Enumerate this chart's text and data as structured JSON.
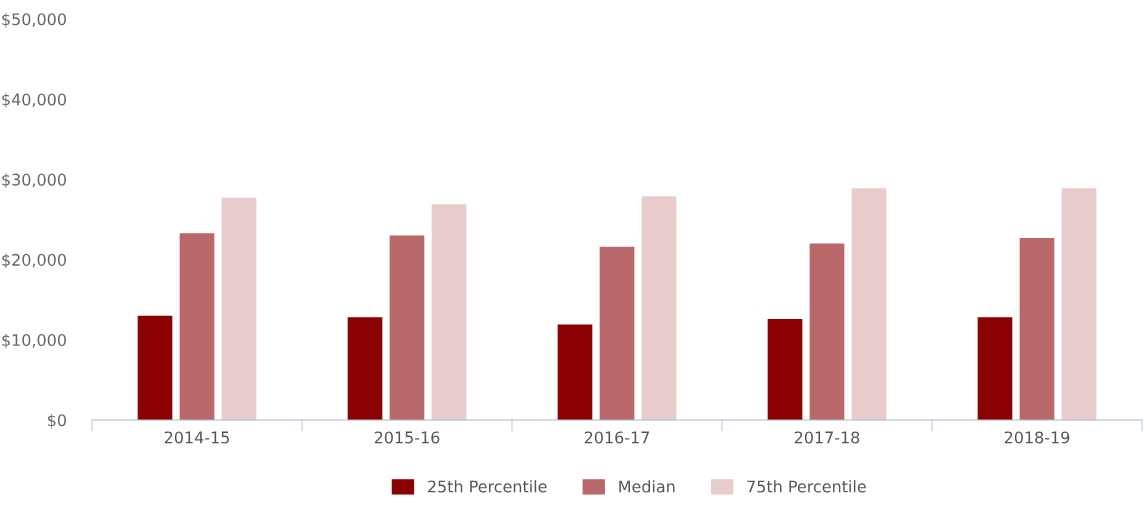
{
  "chart_data": {
    "type": "bar",
    "categories": [
      "2014-15",
      "2015-16",
      "2016-17",
      "2017-18",
      "2018-19"
    ],
    "series": [
      {
        "name": "25th Percentile",
        "color": "#8b0000",
        "values": [
          13000,
          12800,
          11900,
          12600,
          12800
        ]
      },
      {
        "name": "Median",
        "color": "#b86868",
        "values": [
          23300,
          23000,
          21600,
          22000,
          22700
        ]
      },
      {
        "name": "75th Percentile",
        "color": "#e8cccc",
        "values": [
          27700,
          26900,
          27900,
          28900,
          28900
        ]
      }
    ],
    "ylim": [
      0,
      50000
    ],
    "yticks": [
      {
        "value": 0,
        "label": "$0"
      },
      {
        "value": 10000,
        "label": "$10,000"
      },
      {
        "value": 20000,
        "label": "$20,000"
      },
      {
        "value": 30000,
        "label": "$30,000"
      },
      {
        "value": 40000,
        "label": "$40,000"
      },
      {
        "value": 50000,
        "label": "$50,000"
      }
    ],
    "grid": false,
    "legend": "bottom"
  }
}
